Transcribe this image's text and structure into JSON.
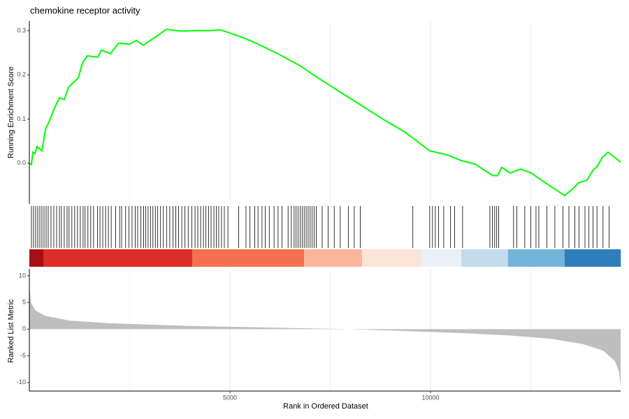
{
  "chart_data": [
    {
      "type": "line",
      "title": "chemokine receptor activity",
      "ylabel": "Running Enrichment Score",
      "color": "#00ff00",
      "x": [
        0,
        52,
        87,
        139,
        192,
        314,
        401,
        523,
        627,
        749,
        871,
        976,
        1097,
        1220,
        1324,
        1446,
        1707,
        1794,
        2021,
        2230,
        2491,
        2665,
        2840,
        3101,
        3414,
        3798,
        4146,
        4494,
        4756,
        5017,
        5365,
        5714,
        6236,
        6759,
        7282,
        7978,
        8849,
        9372,
        9982,
        10417,
        10766,
        11114,
        11550,
        11672,
        11776,
        11985,
        12247,
        12508,
        12857,
        13345,
        13554,
        13693,
        13902,
        14042,
        14164,
        14286,
        14425,
        14739
      ],
      "values": [
        0,
        -0.003,
        0.025,
        0.022,
        0.038,
        0.028,
        0.076,
        0.101,
        0.125,
        0.148,
        0.144,
        0.172,
        0.183,
        0.193,
        0.227,
        0.243,
        0.24,
        0.256,
        0.248,
        0.272,
        0.269,
        0.278,
        0.267,
        0.283,
        0.303,
        0.299,
        0.3,
        0.3,
        0.302,
        0.294,
        0.283,
        0.269,
        0.246,
        0.22,
        0.188,
        0.148,
        0.098,
        0.07,
        0.028,
        0.019,
        0.006,
        -0.002,
        -0.028,
        -0.028,
        -0.009,
        -0.022,
        -0.013,
        -0.022,
        -0.044,
        -0.073,
        -0.057,
        -0.044,
        -0.038,
        -0.017,
        -0.006,
        0.014,
        0.025,
        0.003
      ],
      "xlim": [
        0,
        14739
      ],
      "ylim": [
        -0.092,
        0.322
      ],
      "yticks": [
        {
          "value": 0,
          "label": "0.0"
        },
        0.1,
        0.2,
        0.3
      ]
    },
    {
      "type": "rug",
      "color": "#000000",
      "xlim": [
        0,
        14739
      ],
      "hits": [
        52,
        104,
        157,
        209,
        261,
        313,
        366,
        418,
        470,
        540,
        610,
        680,
        750,
        800,
        870,
        940,
        990,
        1060,
        1130,
        1200,
        1270,
        1340,
        1390,
        1460,
        1530,
        1600,
        1700,
        1760,
        1830,
        1900,
        1970,
        2040,
        2150,
        2250,
        2300,
        2400,
        2480,
        2560,
        2640,
        2700,
        2780,
        2850,
        2900,
        2960,
        3020,
        3080,
        3140,
        3200,
        3270,
        3340,
        3420,
        3500,
        3580,
        3650,
        3720,
        3800,
        3880,
        3960,
        4050,
        4130,
        4200,
        4270,
        4340,
        4400,
        4470,
        4530,
        4600,
        4660,
        4720,
        4790,
        4860,
        4950,
        5220,
        5400,
        5500,
        5620,
        5700,
        5800,
        5880,
        5980,
        6100,
        6200,
        6300,
        6450,
        6530,
        6600,
        6650,
        6700,
        6750,
        6800,
        6850,
        6900,
        6950,
        7000,
        7050,
        7100,
        7150,
        7300,
        7450,
        7600,
        7750,
        7950,
        8100,
        8250,
        9560,
        9980,
        10050,
        10120,
        10200,
        10330,
        10500,
        10600,
        10800,
        11480,
        11540,
        11600,
        11650,
        11700,
        12070,
        12150,
        12350,
        12500,
        12630,
        12700,
        12900,
        13100,
        13300,
        13450,
        13600,
        13700,
        13850,
        13950,
        14050,
        14150,
        14300,
        14450
      ],
      "color_band": {
        "edges": [
          0,
          348,
          4059,
          6847,
          8293,
          9774,
          10766,
          11933,
          13345,
          14739
        ],
        "colors": [
          "#a50f15",
          "#dc2d27",
          "#f4704e",
          "#fbb59c",
          "#fde4d8",
          "#eaf0fa",
          "#c3dbeb",
          "#74b3da",
          "#2f7ebc"
        ]
      }
    },
    {
      "type": "area",
      "ylabel": "Ranked List Metric",
      "xlabel": "Rank in Ordered Dataset",
      "color": "#bebebe",
      "x": [
        0,
        40,
        150,
        400,
        1000,
        2000,
        4000,
        6000,
        8000,
        10000,
        11000,
        12000,
        13000,
        13800,
        14300,
        14600,
        14700,
        14739
      ],
      "values": [
        8,
        5,
        3.5,
        2.5,
        1.6,
        1.1,
        0.6,
        0.3,
        0,
        -0.5,
        -0.8,
        -1.2,
        -1.8,
        -2.8,
        -4,
        -6,
        -8,
        -10.8
      ],
      "xlim": [
        0,
        14739
      ],
      "ylim": [
        -11.6,
        11.3
      ],
      "yticks": [
        -10,
        -5,
        0,
        5,
        10
      ],
      "xticks": [
        5000,
        10000
      ],
      "x_minor_grid": [
        2500,
        7500,
        12500
      ]
    }
  ]
}
